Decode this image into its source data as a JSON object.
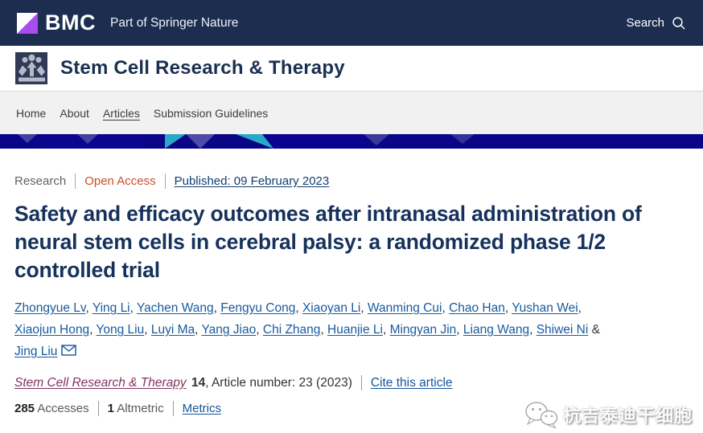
{
  "header": {
    "logo": "BMC",
    "tagline": "Part of Springer Nature",
    "search_label": "Search"
  },
  "journal": {
    "name": "Stem Cell Research & Therapy"
  },
  "nav": {
    "items": [
      {
        "label": "Home"
      },
      {
        "label": "About"
      },
      {
        "label": "Articles"
      },
      {
        "label": "Submission Guidelines"
      }
    ]
  },
  "article": {
    "type_label": "Research",
    "access_label": "Open Access",
    "published": "Published: 09 February 2023",
    "title": "Safety and efficacy outcomes after intranasal administration of neural stem cells in cerebral palsy: a randomized phase 1/2 controlled trial",
    "authors": [
      "Zhongyue Lv",
      "Ying Li",
      "Yachen Wang",
      "Fengyu Cong",
      "Xiaoyan Li",
      "Wanming Cui",
      "Chao Han",
      "Yushan Wei",
      "Xiaojun Hong",
      "Yong Liu",
      "Luyi Ma",
      "Yang Jiao",
      "Chi Zhang",
      "Huanjie Li",
      "Mingyan Jin",
      "Liang Wang",
      "Shiwei Ni",
      "Jing Liu"
    ],
    "citation": {
      "journal": "Stem Cell Research & Therapy",
      "volume": "14",
      "rest": ", Article number: 23 (2023)",
      "cite_link": "Cite this article"
    },
    "metrics": {
      "accesses_value": "285",
      "accesses_label": "Accesses",
      "altmetric_value": "1",
      "altmetric_label": "Altmetric",
      "metrics_link": "Metrics"
    }
  },
  "watermark": {
    "text": "杭吉泰迪干细胞",
    "icon": "wechat-icon"
  },
  "colors": {
    "header_bg": "#1c2d4f",
    "banner_bg": "#0a0687",
    "bmc_purple": "#a84cf0",
    "open_access_orange": "#c8502d",
    "link_blue": "#15549a",
    "visited_plum": "#82335f",
    "title_navy": "#16325c",
    "teal_accent": "#2ba8c8",
    "nav_bg": "#f1f1f1"
  }
}
